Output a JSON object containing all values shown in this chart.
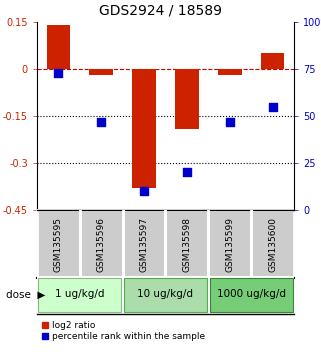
{
  "title": "GDS2924 / 18589",
  "samples": [
    "GSM135595",
    "GSM135596",
    "GSM135597",
    "GSM135598",
    "GSM135599",
    "GSM135600"
  ],
  "log2_ratio": [
    0.14,
    -0.02,
    -0.38,
    -0.19,
    -0.02,
    0.05
  ],
  "percentile_rank": [
    73,
    47,
    10,
    20,
    47,
    55
  ],
  "ylim_left": [
    -0.45,
    0.15
  ],
  "ylim_right": [
    0,
    100
  ],
  "left_yticks": [
    0.15,
    0,
    -0.15,
    -0.3,
    -0.45
  ],
  "right_yticks": [
    100,
    75,
    50,
    25,
    0
  ],
  "dose_groups": [
    {
      "label": "1 ug/kg/d",
      "samples": [
        0,
        1
      ],
      "color": "#ccffcc",
      "edge": "#88bb88"
    },
    {
      "label": "10 ug/kg/d",
      "samples": [
        2,
        3
      ],
      "color": "#aaddaa",
      "edge": "#55aa55"
    },
    {
      "label": "1000 ug/kg/d",
      "samples": [
        4,
        5
      ],
      "color": "#77cc77",
      "edge": "#338833"
    }
  ],
  "bar_color": "#cc2200",
  "dot_color": "#0000cc",
  "bar_width": 0.55,
  "dot_size": 28,
  "hline_zero_color": "#cc0000",
  "hline_zero_style": "--",
  "hline_dotted_color": "black",
  "hline_dotted_vals": [
    -0.15,
    -0.3
  ],
  "sample_box_color": "#cccccc",
  "legend_log2": "log2 ratio",
  "legend_pct": "percentile rank within the sample",
  "title_fontsize": 10,
  "tick_fontsize": 7,
  "label_fontsize": 7.5
}
